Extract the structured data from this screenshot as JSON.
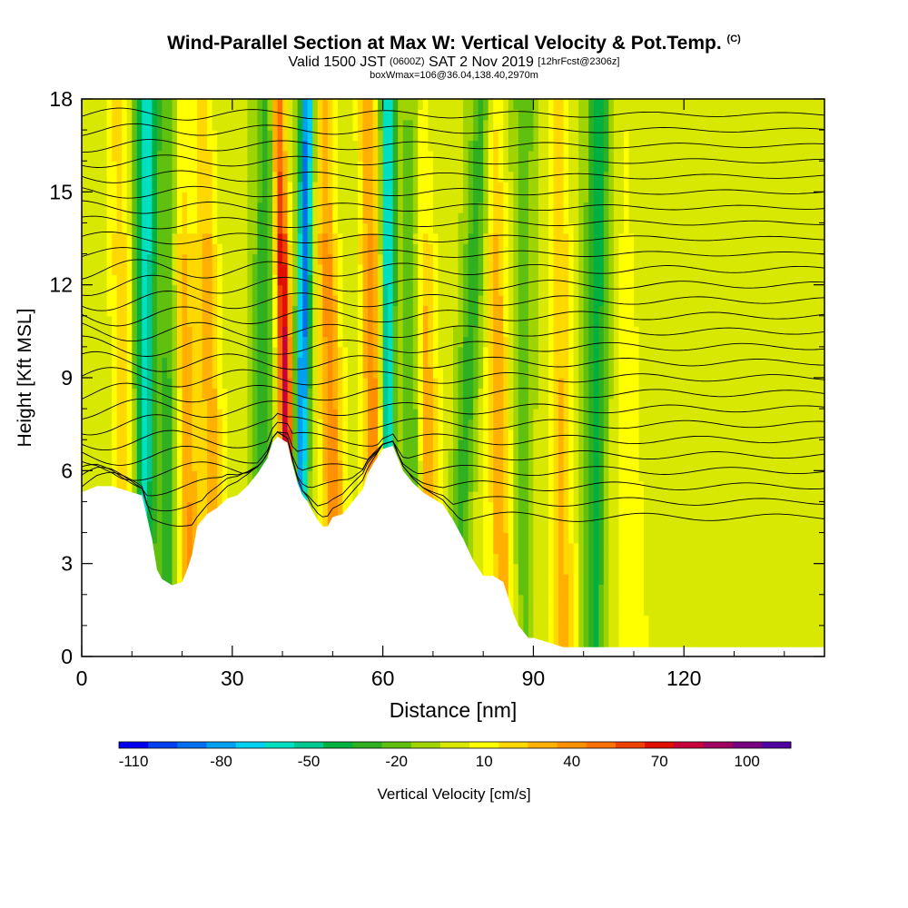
{
  "title": {
    "main": "Wind-Parallel Section at Max W: Vertical Velocity & Pot.Temp.",
    "copyright": "(C)",
    "valid_prefix": "Valid 1500 JST",
    "valid_utc": "(0600Z)",
    "valid_date": "SAT 2 Nov 2019",
    "forecast": "[12hrFcst@2306z]",
    "boxwmax": "boxWmax=106@36.04,138.40,2970m"
  },
  "chart_data": {
    "type": "heatmap",
    "xlabel": "Distance [nm]",
    "ylabel": "Height [Kft MSL]",
    "xlim": [
      0,
      148
    ],
    "ylim": [
      0,
      18
    ],
    "x_ticks": [
      0,
      30,
      60,
      90,
      120
    ],
    "y_ticks": [
      0,
      3,
      6,
      9,
      12,
      15,
      18
    ],
    "grid": false,
    "colorbar": {
      "label": "Vertical Velocity [cm/s]",
      "tick_labels": [
        -110,
        -80,
        -50,
        -20,
        10,
        40,
        70,
        100
      ],
      "colors": [
        "#0000f0",
        "#0040f0",
        "#0070f0",
        "#00a0f0",
        "#00d0f0",
        "#00e0c0",
        "#00c890",
        "#00b040",
        "#30b020",
        "#60c010",
        "#a0d400",
        "#d8e800",
        "#ffff00",
        "#ffd800",
        "#ffb000",
        "#ff9000",
        "#ff7000",
        "#f04000",
        "#e01000",
        "#c8003c",
        "#a00060",
        "#780080",
        "#5000a0"
      ]
    },
    "terrain_kft": [
      [
        0,
        5.3
      ],
      [
        3,
        5.5
      ],
      [
        6,
        5.5
      ],
      [
        8,
        5.4
      ],
      [
        10,
        5.3
      ],
      [
        12,
        5.2
      ],
      [
        13,
        4.5
      ],
      [
        14,
        3.8
      ],
      [
        15,
        2.8
      ],
      [
        16,
        2.5
      ],
      [
        18,
        2.3
      ],
      [
        20,
        2.4
      ],
      [
        21,
        2.8
      ],
      [
        22,
        3.3
      ],
      [
        23,
        4.2
      ],
      [
        25,
        4.6
      ],
      [
        27,
        4.8
      ],
      [
        29,
        5.1
      ],
      [
        31,
        5.2
      ],
      [
        33,
        5.5
      ],
      [
        35,
        5.9
      ],
      [
        37,
        6.4
      ],
      [
        38,
        6.9
      ],
      [
        39,
        7.1
      ],
      [
        40,
        7.0
      ],
      [
        41,
        6.9
      ],
      [
        42,
        6.2
      ],
      [
        43,
        5.6
      ],
      [
        44,
        5.2
      ],
      [
        45,
        5.0
      ],
      [
        46,
        4.7
      ],
      [
        47,
        4.4
      ],
      [
        48,
        4.2
      ],
      [
        49,
        4.2
      ],
      [
        50,
        4.5
      ],
      [
        52,
        4.6
      ],
      [
        54,
        5.0
      ],
      [
        56,
        5.4
      ],
      [
        57,
        5.9
      ],
      [
        58,
        6.2
      ],
      [
        60,
        6.7
      ],
      [
        62,
        6.8
      ],
      [
        63,
        6.4
      ],
      [
        64,
        6.0
      ],
      [
        66,
        5.6
      ],
      [
        68,
        5.3
      ],
      [
        70,
        5.1
      ],
      [
        72,
        4.9
      ],
      [
        74,
        4.4
      ],
      [
        76,
        3.8
      ],
      [
        78,
        3.1
      ],
      [
        80,
        2.6
      ],
      [
        82,
        2.6
      ],
      [
        84,
        2.4
      ],
      [
        85,
        1.9
      ],
      [
        86,
        1.4
      ],
      [
        87,
        1.0
      ],
      [
        88,
        0.8
      ],
      [
        89,
        0.6
      ],
      [
        90,
        0.6
      ],
      [
        92,
        0.5
      ],
      [
        94,
        0.4
      ],
      [
        96,
        0.3
      ],
      [
        100,
        0.3
      ],
      [
        110,
        0.3
      ],
      [
        120,
        0.3
      ],
      [
        130,
        0.3
      ],
      [
        140,
        0.3
      ],
      [
        148,
        0.3
      ]
    ],
    "updraft_bands": [
      {
        "x_bottom": 10,
        "x_top": 7,
        "peak": 25
      },
      {
        "x_bottom": 22,
        "x_top": 19,
        "peak": 35
      },
      {
        "x_bottom": 27,
        "x_top": 24,
        "peak": 30
      },
      {
        "x_bottom": 42,
        "x_top": 39,
        "peak": 80
      },
      {
        "x_bottom": 51,
        "x_top": 48,
        "peak": 40
      },
      {
        "x_bottom": 59,
        "x_top": 57,
        "peak": 40
      },
      {
        "x_bottom": 70,
        "x_top": 67,
        "peak": 35
      },
      {
        "x_bottom": 84,
        "x_top": 82,
        "peak": 30
      },
      {
        "x_bottom": 96,
        "x_top": 95,
        "peak": 25
      },
      {
        "x_bottom": 110,
        "x_top": 108,
        "peak": 10
      }
    ],
    "downdraft_bands": [
      {
        "x_bottom": 12,
        "x_top": 13,
        "peak": -60
      },
      {
        "x_bottom": 17,
        "x_top": 18,
        "peak": -30
      },
      {
        "x_bottom": 35,
        "x_top": 37,
        "peak": -30
      },
      {
        "x_bottom": 43,
        "x_top": 45,
        "peak": -90
      },
      {
        "x_bottom": 61,
        "x_top": 61,
        "peak": -70
      },
      {
        "x_bottom": 66,
        "x_top": 66,
        "peak": -30
      },
      {
        "x_bottom": 74,
        "x_top": 80,
        "peak": -30
      },
      {
        "x_bottom": 88,
        "x_top": 88,
        "peak": -20
      },
      {
        "x_bottom": 102,
        "x_top": 103,
        "peak": -40
      }
    ],
    "theta_contour_heights_kft": [
      4.5,
      5.0,
      5.5,
      6.0,
      6.5,
      7.0,
      7.5,
      8.0,
      8.5,
      9.0,
      9.5,
      10.0,
      10.5,
      11.0,
      11.5,
      12.0,
      12.5,
      13.0,
      13.5,
      14.0,
      14.5,
      15.0,
      15.5,
      16.0,
      16.5,
      17.0,
      17.5
    ]
  }
}
